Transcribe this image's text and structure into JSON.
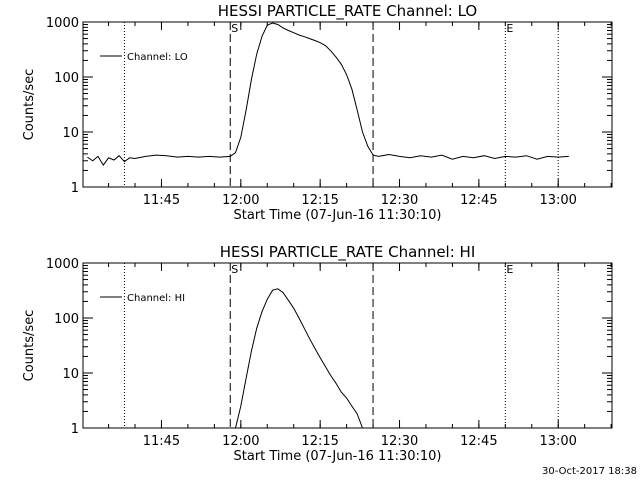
{
  "footer_timestamp": "30-Oct-2017 18:38",
  "chart_data": [
    {
      "type": "line",
      "title": "HESSI PARTICLE_RATE Channel: LO",
      "xlabel": "Start Time (07-Jun-16 11:30:10)",
      "ylabel": "Counts/sec",
      "yscale": "log",
      "ylim": [
        1,
        1000
      ],
      "xlim_minutes": [
        0,
        100
      ],
      "x_ticks": [
        "11:45",
        "12:00",
        "12:15",
        "12:30",
        "12:45",
        "13:00"
      ],
      "y_ticks": [
        "1",
        "10",
        "100",
        "1000"
      ],
      "legend": "Channel: LO",
      "legend_position": "top-left",
      "dotted_lines": [
        "11:38",
        "12:50",
        "13:00"
      ],
      "dashed_lines": [
        "11:58",
        "12:25"
      ],
      "markers": [
        {
          "label": "S",
          "at": "11:58"
        },
        {
          "label": "E",
          "at": "12:50"
        }
      ],
      "series": [
        {
          "name": "Channel: LO",
          "x": [
            "11:31",
            "11:32",
            "11:33",
            "11:34",
            "11:35",
            "11:36",
            "11:37",
            "11:38",
            "11:39",
            "11:40",
            "11:42",
            "11:44",
            "11:46",
            "11:48",
            "11:50",
            "11:52",
            "11:54",
            "11:56",
            "11:58",
            "11:59",
            "12:00",
            "12:01",
            "12:02",
            "12:03",
            "12:04",
            "12:05",
            "12:06",
            "12:07",
            "12:08",
            "12:09",
            "12:10",
            "12:11",
            "12:12",
            "12:13",
            "12:14",
            "12:15",
            "12:16",
            "12:17",
            "12:18",
            "12:19",
            "12:20",
            "12:21",
            "12:22",
            "12:23",
            "12:24",
            "12:25",
            "12:26",
            "12:28",
            "12:30",
            "12:32",
            "12:34",
            "12:36",
            "12:38",
            "12:40",
            "12:42",
            "12:44",
            "12:46",
            "12:48",
            "12:50",
            "12:52",
            "12:54",
            "12:56",
            "12:58",
            "13:00",
            "13:02"
          ],
          "values": [
            3.5,
            3.0,
            3.6,
            2.5,
            3.4,
            3.1,
            3.7,
            2.9,
            3.4,
            3.3,
            3.6,
            3.8,
            3.7,
            3.5,
            3.6,
            3.5,
            3.6,
            3.5,
            3.6,
            4.2,
            8,
            25,
            90,
            260,
            550,
            880,
            960,
            900,
            780,
            700,
            640,
            580,
            540,
            500,
            460,
            420,
            370,
            300,
            230,
            170,
            110,
            60,
            25,
            10,
            5.5,
            3.8,
            3.6,
            3.9,
            3.6,
            3.4,
            3.7,
            3.5,
            3.8,
            3.2,
            3.6,
            3.4,
            3.7,
            3.3,
            3.6,
            3.5,
            3.7,
            3.2,
            3.6,
            3.5,
            3.6
          ]
        }
      ]
    },
    {
      "type": "line",
      "title": "HESSI PARTICLE_RATE Channel: HI",
      "xlabel": "Start Time (07-Jun-16 11:30:10)",
      "ylabel": "Counts/sec",
      "yscale": "log",
      "ylim": [
        1,
        1000
      ],
      "xlim_minutes": [
        0,
        100
      ],
      "x_ticks": [
        "11:45",
        "12:00",
        "12:15",
        "12:30",
        "12:45",
        "13:00"
      ],
      "y_ticks": [
        "1",
        "10",
        "100",
        "1000"
      ],
      "legend": "Channel: HI",
      "legend_position": "top-left",
      "dotted_lines": [
        "11:38",
        "12:50",
        "13:00"
      ],
      "dashed_lines": [
        "11:58",
        "12:25"
      ],
      "markers": [
        {
          "label": "S",
          "at": "11:58"
        },
        {
          "label": "E",
          "at": "12:50"
        }
      ],
      "series": [
        {
          "name": "Channel: HI",
          "x": [
            "11:59",
            "12:00",
            "12:01",
            "12:02",
            "12:03",
            "12:04",
            "12:05",
            "12:06",
            "12:07",
            "12:08",
            "12:09",
            "12:10",
            "12:11",
            "12:12",
            "12:13",
            "12:14",
            "12:15",
            "12:16",
            "12:17",
            "12:18",
            "12:19",
            "12:20",
            "12:21",
            "12:22",
            "12:23"
          ],
          "values": [
            1,
            2.5,
            8,
            25,
            65,
            130,
            220,
            320,
            340,
            290,
            210,
            150,
            100,
            65,
            42,
            28,
            19,
            13,
            9,
            6.5,
            4.5,
            3.5,
            2.5,
            1.8,
            1
          ]
        }
      ]
    }
  ]
}
